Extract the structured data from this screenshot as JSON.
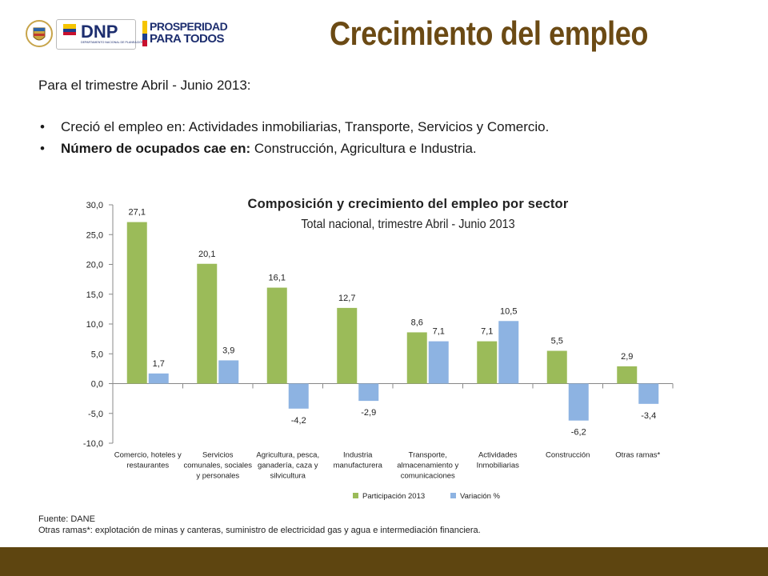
{
  "header": {
    "title": "Crecimiento del empleo",
    "logos": {
      "dnp_text": "DNP",
      "dnp_sub": "DEPARTAMENTO NACIONAL DE PLANEACIÓN",
      "prosperidad_line1": "PROSPERIDAD",
      "prosperidad_line2": "PARA TODOS"
    }
  },
  "body": {
    "intro": "Para el trimestre Abril - Junio 2013:",
    "bullets": [
      {
        "bold": "",
        "text": "Creció el empleo en: Actividades inmobiliarias, Transporte, Servicios y Comercio."
      },
      {
        "bold": "Número de ocupados cae en:",
        "text": " Construcción, Agricultura e Industria."
      }
    ],
    "bullet_glyph": "•"
  },
  "chart_data": {
    "type": "bar",
    "title": "Composición y crecimiento del empleo por sector",
    "subtitle": "Total nacional, trimestre Abril - Junio 2013",
    "categories": [
      [
        "Comercio, hoteles y",
        "restaurantes"
      ],
      [
        "Servicios",
        "comunales, sociales",
        "y personales"
      ],
      [
        "Agricultura, pesca,",
        "ganadería, caza y",
        "silvicultura"
      ],
      [
        "Industria",
        "manufacturera"
      ],
      [
        "Transporte,",
        "almacenamiento y",
        "comunicaciones"
      ],
      [
        "Actividades",
        "Inmobiliarias"
      ],
      [
        "Construcción"
      ],
      [
        "Otras ramas*"
      ]
    ],
    "series": [
      {
        "name": "Participación 2013",
        "color": "#9bbb59",
        "values": [
          27.1,
          20.1,
          16.1,
          12.7,
          8.6,
          7.1,
          5.5,
          2.9
        ],
        "labels": [
          "27,1",
          "20,1",
          "16,1",
          "12,7",
          "8,6",
          "7,1",
          "5,5",
          "2,9"
        ]
      },
      {
        "name": "Variación %",
        "color": "#8db3e2",
        "values": [
          1.7,
          3.9,
          -4.2,
          -2.9,
          7.1,
          10.5,
          -6.2,
          -3.4
        ],
        "labels": [
          "1,7",
          "3,9",
          "-4,2",
          "-2,9",
          "7,1",
          "10,5",
          "-6,2",
          "-3,4"
        ]
      }
    ],
    "ylim": [
      -10,
      30
    ],
    "yticks": [
      30,
      25,
      20,
      15,
      10,
      5,
      0,
      -5,
      -10
    ],
    "ytick_labels": [
      "30,0",
      "25,0",
      "20,0",
      "15,0",
      "10,0",
      "5,0",
      "0,0",
      "-5,0",
      "-10,0"
    ],
    "legend_position": "bottom",
    "grid": false
  },
  "footer": {
    "source": "Fuente: DANE",
    "note": "Otras ramas*:  explotación de minas y canteras, suministro de electricidad gas y agua e intermediación financiera."
  }
}
